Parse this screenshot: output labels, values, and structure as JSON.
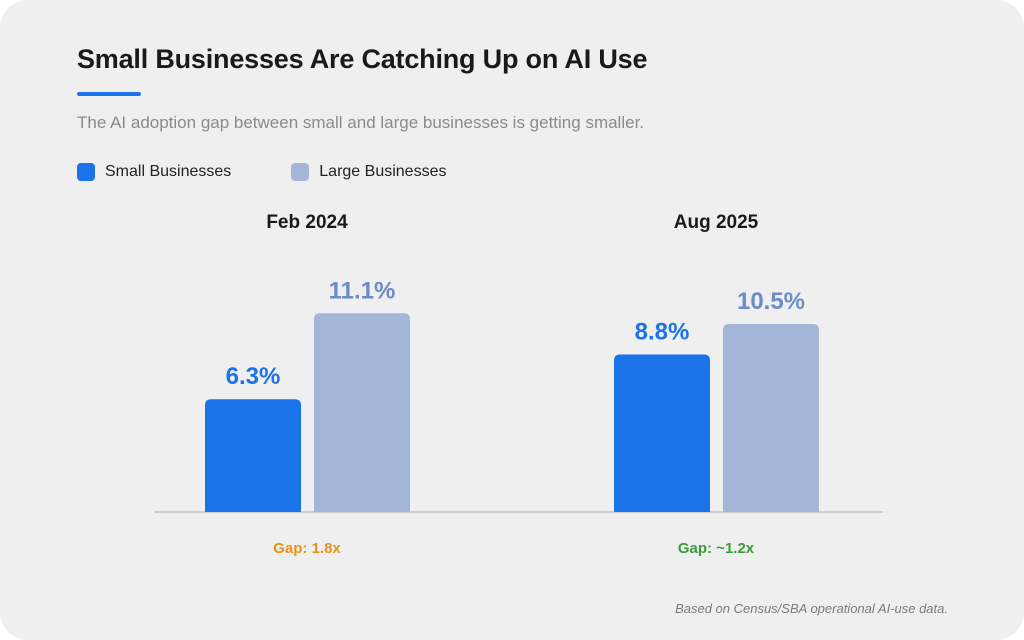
{
  "header": {
    "title": "Small Businesses Are Catching Up on AI Use",
    "subtitle": "The AI adoption gap between small and large businesses is getting smaller."
  },
  "legend": [
    {
      "label": "Small Businesses",
      "color": "#1a73e8"
    },
    {
      "label": "Large Businesses",
      "color": "#a3b6d8"
    }
  ],
  "chart_data": {
    "type": "bar",
    "categories": [
      "Feb 2024",
      "Aug 2025"
    ],
    "series": [
      {
        "name": "Small Businesses",
        "values": [
          6.3,
          8.8
        ],
        "labels": [
          "6.3%",
          "8.8%"
        ],
        "color": "#1a73e8",
        "label_color": "#1a73e8"
      },
      {
        "name": "Large Businesses",
        "values": [
          11.1,
          10.5
        ],
        "labels": [
          "11.1%",
          "10.5%"
        ],
        "color": "#a3b6d8",
        "label_color": "#6b8cc8"
      }
    ],
    "annotations": [
      {
        "text": "Gap: 1.8x",
        "color": "#e8921a"
      },
      {
        "text": "Gap: ~1.2x",
        "color": "#3d9a3d"
      }
    ],
    "ylim": [
      0,
      12
    ],
    "grid": false
  },
  "footnote": "Based on Census/SBA operational AI-use data."
}
